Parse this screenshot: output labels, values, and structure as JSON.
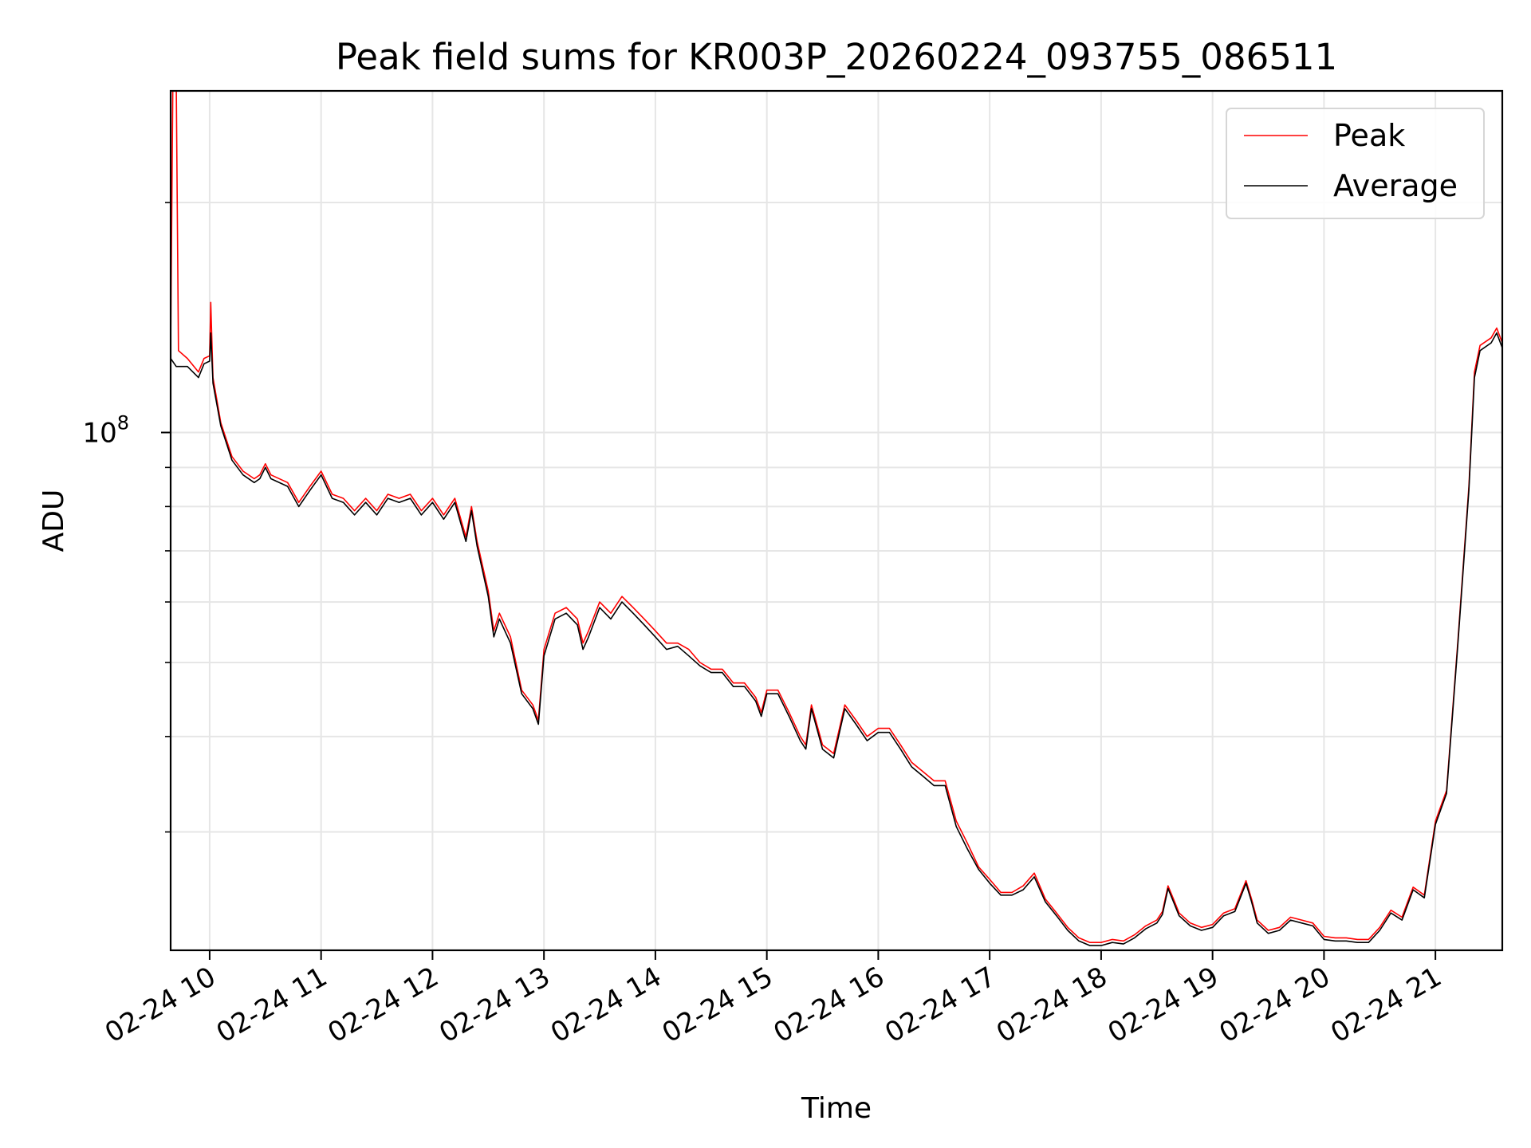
{
  "chart_data": {
    "type": "line",
    "title": "Peak field sums for KR003P_20260224_093755_086511",
    "xlabel": "Time",
    "ylabel": "ADU",
    "yscale": "log",
    "ylim": [
      21000000,
      280000000
    ],
    "xlim": [
      9.65,
      21.6
    ],
    "grid": true,
    "legend_position": "top-right",
    "x_unit": "hour of 2026-02-24",
    "y_ticks": [
      {
        "value": 100000000,
        "base": "10",
        "exp": "8"
      }
    ],
    "y_minor_ticks": [
      30000000,
      40000000,
      50000000,
      60000000,
      70000000,
      80000000,
      90000000,
      200000000
    ],
    "x_ticks": [
      {
        "value": 10,
        "label": "02-24 10"
      },
      {
        "value": 11,
        "label": "02-24 11"
      },
      {
        "value": 12,
        "label": "02-24 12"
      },
      {
        "value": 13,
        "label": "02-24 13"
      },
      {
        "value": 14,
        "label": "02-24 14"
      },
      {
        "value": 15,
        "label": "02-24 15"
      },
      {
        "value": 16,
        "label": "02-24 16"
      },
      {
        "value": 17,
        "label": "02-24 17"
      },
      {
        "value": 18,
        "label": "02-24 18"
      },
      {
        "value": 19,
        "label": "02-24 19"
      },
      {
        "value": 20,
        "label": "02-24 20"
      },
      {
        "value": 21,
        "label": "02-24 21"
      }
    ],
    "series": [
      {
        "name": "Peak",
        "color": "#ff0000",
        "points": [
          [
            9.65,
            128000000
          ],
          [
            9.67,
            290000000
          ],
          [
            9.7,
            290000000
          ],
          [
            9.72,
            128000000
          ],
          [
            9.8,
            125000000
          ],
          [
            9.9,
            120000000
          ],
          [
            9.95,
            125000000
          ],
          [
            10.0,
            126000000
          ],
          [
            10.01,
            148000000
          ],
          [
            10.03,
            118000000
          ],
          [
            10.1,
            103000000
          ],
          [
            10.2,
            93000000
          ],
          [
            10.3,
            89000000
          ],
          [
            10.4,
            87000000
          ],
          [
            10.45,
            88000000
          ],
          [
            10.5,
            91000000
          ],
          [
            10.55,
            88000000
          ],
          [
            10.7,
            86000000
          ],
          [
            10.8,
            81000000
          ],
          [
            10.9,
            85000000
          ],
          [
            11.0,
            89000000
          ],
          [
            11.1,
            83000000
          ],
          [
            11.2,
            82000000
          ],
          [
            11.3,
            79000000
          ],
          [
            11.4,
            82000000
          ],
          [
            11.5,
            79000000
          ],
          [
            11.6,
            83000000
          ],
          [
            11.7,
            82000000
          ],
          [
            11.8,
            83000000
          ],
          [
            11.9,
            79000000
          ],
          [
            12.0,
            82000000
          ],
          [
            12.1,
            78000000
          ],
          [
            12.2,
            82000000
          ],
          [
            12.3,
            73000000
          ],
          [
            12.35,
            80000000
          ],
          [
            12.4,
            72000000
          ],
          [
            12.5,
            62000000
          ],
          [
            12.55,
            55000000
          ],
          [
            12.6,
            58000000
          ],
          [
            12.7,
            54000000
          ],
          [
            12.8,
            46000000
          ],
          [
            12.9,
            44000000
          ],
          [
            12.95,
            42000000
          ],
          [
            13.0,
            52000000
          ],
          [
            13.1,
            58000000
          ],
          [
            13.2,
            59000000
          ],
          [
            13.3,
            57000000
          ],
          [
            13.35,
            53000000
          ],
          [
            13.4,
            55000000
          ],
          [
            13.5,
            60000000
          ],
          [
            13.6,
            58000000
          ],
          [
            13.7,
            61000000
          ],
          [
            13.8,
            59000000
          ],
          [
            13.9,
            57000000
          ],
          [
            14.0,
            55000000
          ],
          [
            14.1,
            53000000
          ],
          [
            14.2,
            53000000
          ],
          [
            14.3,
            52000000
          ],
          [
            14.4,
            50000000
          ],
          [
            14.5,
            49000000
          ],
          [
            14.6,
            49000000
          ],
          [
            14.7,
            47000000
          ],
          [
            14.8,
            47000000
          ],
          [
            14.9,
            45000000
          ],
          [
            14.95,
            43000000
          ],
          [
            15.0,
            46000000
          ],
          [
            15.1,
            46000000
          ],
          [
            15.2,
            43000000
          ],
          [
            15.3,
            40000000
          ],
          [
            15.35,
            39000000
          ],
          [
            15.4,
            44000000
          ],
          [
            15.5,
            39000000
          ],
          [
            15.6,
            38000000
          ],
          [
            15.7,
            44000000
          ],
          [
            15.8,
            42000000
          ],
          [
            15.9,
            40000000
          ],
          [
            16.0,
            41000000
          ],
          [
            16.1,
            41000000
          ],
          [
            16.2,
            39000000
          ],
          [
            16.3,
            37000000
          ],
          [
            16.4,
            36000000
          ],
          [
            16.5,
            35000000
          ],
          [
            16.6,
            35000000
          ],
          [
            16.7,
            31000000
          ],
          [
            16.8,
            29000000
          ],
          [
            16.9,
            27000000
          ],
          [
            17.0,
            26000000
          ],
          [
            17.1,
            25000000
          ],
          [
            17.2,
            25000000
          ],
          [
            17.3,
            25500000
          ],
          [
            17.4,
            26500000
          ],
          [
            17.5,
            24500000
          ],
          [
            17.6,
            23500000
          ],
          [
            17.7,
            22500000
          ],
          [
            17.8,
            21800000
          ],
          [
            17.9,
            21500000
          ],
          [
            18.0,
            21500000
          ],
          [
            18.1,
            21700000
          ],
          [
            18.2,
            21600000
          ],
          [
            18.3,
            22000000
          ],
          [
            18.4,
            22600000
          ],
          [
            18.5,
            23000000
          ],
          [
            18.55,
            23600000
          ],
          [
            18.6,
            25500000
          ],
          [
            18.65,
            24500000
          ],
          [
            18.7,
            23500000
          ],
          [
            18.8,
            22800000
          ],
          [
            18.9,
            22500000
          ],
          [
            19.0,
            22700000
          ],
          [
            19.1,
            23500000
          ],
          [
            19.2,
            23800000
          ],
          [
            19.3,
            25900000
          ],
          [
            19.35,
            24500000
          ],
          [
            19.4,
            23000000
          ],
          [
            19.5,
            22300000
          ],
          [
            19.6,
            22500000
          ],
          [
            19.7,
            23200000
          ],
          [
            19.8,
            23000000
          ],
          [
            19.9,
            22800000
          ],
          [
            20.0,
            21900000
          ],
          [
            20.1,
            21800000
          ],
          [
            20.2,
            21800000
          ],
          [
            20.3,
            21700000
          ],
          [
            20.4,
            21700000
          ],
          [
            20.5,
            22500000
          ],
          [
            20.6,
            23700000
          ],
          [
            20.7,
            23200000
          ],
          [
            20.8,
            25400000
          ],
          [
            20.9,
            24800000
          ],
          [
            21.0,
            31000000
          ],
          [
            21.1,
            34000000
          ],
          [
            21.2,
            53000000
          ],
          [
            21.3,
            85000000
          ],
          [
            21.35,
            120000000
          ],
          [
            21.4,
            130000000
          ],
          [
            21.5,
            133000000
          ],
          [
            21.55,
            137000000
          ],
          [
            21.6,
            131000000
          ]
        ]
      },
      {
        "name": "Average",
        "color": "#000000",
        "points": [
          [
            9.65,
            125000000
          ],
          [
            9.7,
            122000000
          ],
          [
            9.8,
            122000000
          ],
          [
            9.9,
            118000000
          ],
          [
            9.95,
            123000000
          ],
          [
            10.0,
            124000000
          ],
          [
            10.01,
            135000000
          ],
          [
            10.03,
            116000000
          ],
          [
            10.1,
            102000000
          ],
          [
            10.2,
            92000000
          ],
          [
            10.3,
            88000000
          ],
          [
            10.4,
            86000000
          ],
          [
            10.45,
            87000000
          ],
          [
            10.5,
            90000000
          ],
          [
            10.55,
            87000000
          ],
          [
            10.7,
            85000000
          ],
          [
            10.8,
            80000000
          ],
          [
            10.9,
            84000000
          ],
          [
            11.0,
            88000000
          ],
          [
            11.1,
            82000000
          ],
          [
            11.2,
            81000000
          ],
          [
            11.3,
            78000000
          ],
          [
            11.4,
            81000000
          ],
          [
            11.5,
            78000000
          ],
          [
            11.6,
            82000000
          ],
          [
            11.7,
            81000000
          ],
          [
            11.8,
            82000000
          ],
          [
            11.9,
            78000000
          ],
          [
            12.0,
            81000000
          ],
          [
            12.1,
            77000000
          ],
          [
            12.2,
            81000000
          ],
          [
            12.3,
            72000000
          ],
          [
            12.35,
            79000000
          ],
          [
            12.4,
            71000000
          ],
          [
            12.5,
            61000000
          ],
          [
            12.55,
            54000000
          ],
          [
            12.6,
            57000000
          ],
          [
            12.7,
            53000000
          ],
          [
            12.8,
            45500000
          ],
          [
            12.9,
            43500000
          ],
          [
            12.95,
            41500000
          ],
          [
            13.0,
            51000000
          ],
          [
            13.1,
            57000000
          ],
          [
            13.2,
            58000000
          ],
          [
            13.3,
            56000000
          ],
          [
            13.35,
            52000000
          ],
          [
            13.4,
            54000000
          ],
          [
            13.5,
            59000000
          ],
          [
            13.6,
            57000000
          ],
          [
            13.7,
            60000000
          ],
          [
            13.8,
            58000000
          ],
          [
            13.9,
            56000000
          ],
          [
            14.0,
            54000000
          ],
          [
            14.1,
            52000000
          ],
          [
            14.2,
            52500000
          ],
          [
            14.3,
            51000000
          ],
          [
            14.4,
            49500000
          ],
          [
            14.5,
            48500000
          ],
          [
            14.6,
            48500000
          ],
          [
            14.7,
            46500000
          ],
          [
            14.8,
            46500000
          ],
          [
            14.9,
            44500000
          ],
          [
            14.95,
            42500000
          ],
          [
            15.0,
            45500000
          ],
          [
            15.1,
            45500000
          ],
          [
            15.2,
            42500000
          ],
          [
            15.3,
            39500000
          ],
          [
            15.35,
            38500000
          ],
          [
            15.4,
            43500000
          ],
          [
            15.5,
            38500000
          ],
          [
            15.6,
            37500000
          ],
          [
            15.7,
            43500000
          ],
          [
            15.8,
            41500000
          ],
          [
            15.9,
            39500000
          ],
          [
            16.0,
            40500000
          ],
          [
            16.1,
            40500000
          ],
          [
            16.2,
            38500000
          ],
          [
            16.3,
            36500000
          ],
          [
            16.4,
            35500000
          ],
          [
            16.5,
            34500000
          ],
          [
            16.6,
            34500000
          ],
          [
            16.7,
            30500000
          ],
          [
            16.8,
            28500000
          ],
          [
            16.9,
            26800000
          ],
          [
            17.0,
            25700000
          ],
          [
            17.1,
            24800000
          ],
          [
            17.2,
            24800000
          ],
          [
            17.3,
            25200000
          ],
          [
            17.4,
            26200000
          ],
          [
            17.5,
            24300000
          ],
          [
            17.6,
            23300000
          ],
          [
            17.7,
            22300000
          ],
          [
            17.8,
            21600000
          ],
          [
            17.9,
            21300000
          ],
          [
            18.0,
            21300000
          ],
          [
            18.1,
            21500000
          ],
          [
            18.2,
            21400000
          ],
          [
            18.3,
            21800000
          ],
          [
            18.4,
            22400000
          ],
          [
            18.5,
            22800000
          ],
          [
            18.55,
            23400000
          ],
          [
            18.6,
            25300000
          ],
          [
            18.65,
            24300000
          ],
          [
            18.7,
            23300000
          ],
          [
            18.8,
            22600000
          ],
          [
            18.9,
            22300000
          ],
          [
            19.0,
            22500000
          ],
          [
            19.1,
            23300000
          ],
          [
            19.2,
            23600000
          ],
          [
            19.3,
            25700000
          ],
          [
            19.35,
            24300000
          ],
          [
            19.4,
            22800000
          ],
          [
            19.5,
            22100000
          ],
          [
            19.6,
            22300000
          ],
          [
            19.7,
            23000000
          ],
          [
            19.8,
            22800000
          ],
          [
            19.9,
            22600000
          ],
          [
            20.0,
            21700000
          ],
          [
            20.1,
            21600000
          ],
          [
            20.2,
            21600000
          ],
          [
            20.3,
            21500000
          ],
          [
            20.4,
            21500000
          ],
          [
            20.5,
            22300000
          ],
          [
            20.6,
            23500000
          ],
          [
            20.7,
            23000000
          ],
          [
            20.8,
            25200000
          ],
          [
            20.9,
            24600000
          ],
          [
            21.0,
            30700000
          ],
          [
            21.1,
            33700000
          ],
          [
            21.2,
            52500000
          ],
          [
            21.3,
            84000000
          ],
          [
            21.35,
            118000000
          ],
          [
            21.4,
            128000000
          ],
          [
            21.5,
            131000000
          ],
          [
            21.55,
            135000000
          ],
          [
            21.6,
            129000000
          ]
        ]
      }
    ]
  }
}
